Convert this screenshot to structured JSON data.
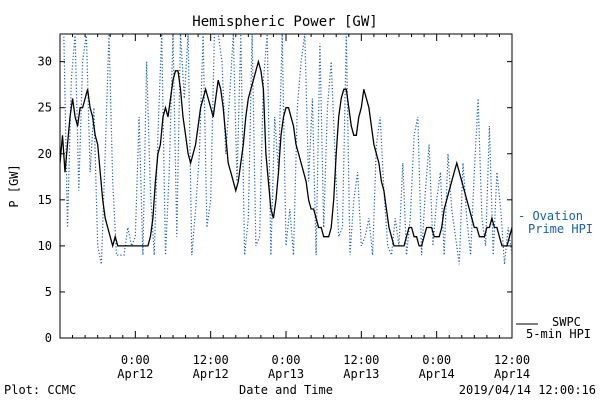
{
  "chart_data": {
    "type": "line",
    "title": "Hemispheric Power [GW]",
    "xlabel": "Date and Time",
    "ylabel": "P [GW]",
    "xlim": [
      0,
      36
    ],
    "ylim": [
      0,
      33
    ],
    "grid": false,
    "y_ticks": [
      0,
      5,
      10,
      15,
      20,
      25,
      30
    ],
    "x_ticks": [
      {
        "x": 6,
        "time": "0:00",
        "date": "Apr12"
      },
      {
        "x": 12,
        "time": "12:00",
        "date": "Apr12"
      },
      {
        "x": 18,
        "time": "0:00",
        "date": "Apr13"
      },
      {
        "x": 24,
        "time": "12:00",
        "date": "Apr13"
      },
      {
        "x": 30,
        "time": "0:00",
        "date": "Apr14"
      },
      {
        "x": 36,
        "time": "12:00",
        "date": "Apr14"
      }
    ],
    "x_unit_note": "hours, x=0 at 2019/04/11 18:00",
    "series": [
      {
        "name": "SWPC 5-min HPI",
        "legend_lines": [
          "SWPC",
          "5-min HPI"
        ],
        "color": "#000000",
        "style": "solid",
        "x": [
          0,
          0.2,
          0.4,
          0.6,
          0.8,
          1.0,
          1.2,
          1.4,
          1.6,
          1.8,
          2.0,
          2.2,
          2.4,
          2.6,
          2.8,
          3.0,
          3.2,
          3.4,
          3.6,
          3.8,
          4.0,
          4.2,
          4.4,
          4.6,
          4.8,
          5.0,
          5.2,
          5.4,
          5.6,
          5.8,
          6.0,
          6.2,
          6.4,
          6.6,
          6.8,
          7.0,
          7.2,
          7.4,
          7.6,
          7.8,
          8.0,
          8.2,
          8.4,
          8.6,
          8.8,
          9.0,
          9.2,
          9.4,
          9.6,
          9.8,
          10.0,
          10.2,
          10.4,
          10.6,
          10.8,
          11.0,
          11.2,
          11.4,
          11.6,
          11.8,
          12.0,
          12.2,
          12.4,
          12.6,
          12.8,
          13.0,
          13.2,
          13.4,
          13.6,
          13.8,
          14.0,
          14.2,
          14.4,
          14.6,
          14.8,
          15.0,
          15.2,
          15.4,
          15.6,
          15.8,
          16.0,
          16.2,
          16.4,
          16.6,
          16.8,
          17.0,
          17.2,
          17.4,
          17.6,
          17.8,
          18.0,
          18.2,
          18.4,
          18.6,
          18.8,
          19.0,
          19.2,
          19.4,
          19.6,
          19.8,
          20.0,
          20.2,
          20.4,
          20.6,
          20.8,
          21.0,
          21.2,
          21.4,
          21.6,
          21.8,
          22.0,
          22.2,
          22.4,
          22.6,
          22.8,
          23.0,
          23.2,
          23.4,
          23.6,
          23.8,
          24.0,
          24.2,
          24.4,
          24.6,
          24.8,
          25.0,
          25.2,
          25.4,
          25.6,
          25.8,
          26.0,
          26.2,
          26.4,
          26.6,
          26.8,
          27.0,
          27.2,
          27.4,
          27.6,
          27.8,
          28.0,
          28.2,
          28.4,
          28.6,
          28.8,
          29.0,
          29.2,
          29.4,
          29.6,
          29.8,
          30.0,
          30.2,
          30.4,
          30.6,
          30.8,
          31.0,
          31.2,
          31.4,
          31.6,
          31.8,
          32.0,
          32.2,
          32.4,
          32.6,
          32.8,
          33.0,
          33.2,
          33.4,
          33.6,
          33.8,
          34.0,
          34.2,
          34.4,
          34.6,
          34.8,
          35.0,
          35.2,
          35.4,
          35.6,
          35.8,
          36.0
        ],
        "values": [
          19,
          22,
          18,
          21,
          24,
          26,
          24,
          23,
          25,
          25,
          26,
          27,
          25,
          24,
          22,
          21,
          18,
          15,
          13,
          12,
          11,
          10,
          11,
          10,
          10,
          10,
          10,
          10,
          10,
          10,
          10,
          10,
          10,
          10,
          10,
          10,
          11,
          13,
          17,
          20,
          21,
          24,
          25,
          24,
          26,
          28,
          29,
          29,
          27,
          24,
          22,
          20,
          19,
          20,
          21,
          23,
          25,
          26,
          27,
          26,
          25,
          24,
          26,
          28,
          27,
          25,
          22,
          19,
          18,
          17,
          16,
          17,
          19,
          21,
          24,
          26,
          27,
          28,
          29,
          30,
          29,
          27,
          20,
          17,
          14,
          13,
          15,
          18,
          22,
          24,
          25,
          25,
          24,
          23,
          21,
          20,
          19,
          18,
          17,
          15,
          14,
          14,
          13,
          12,
          12,
          11,
          11,
          11,
          12,
          15,
          20,
          24,
          26,
          27,
          27,
          25,
          23,
          22,
          22,
          24,
          25,
          27,
          26,
          25,
          23,
          21,
          20,
          19,
          17,
          16,
          14,
          12,
          11,
          10,
          10,
          10,
          10,
          10,
          11,
          12,
          12,
          11,
          11,
          10,
          10,
          11,
          12,
          12,
          12,
          11,
          11,
          11,
          12,
          14,
          15,
          16,
          17,
          18,
          19,
          18,
          17,
          16,
          15,
          14,
          13,
          12,
          12,
          11,
          11,
          11,
          12,
          12,
          13,
          12,
          12,
          11,
          10,
          10,
          10,
          11,
          12
        ]
      },
      {
        "name": "Ovation Prime HPI",
        "legend_lines": [
          "- Ovation",
          "Prime HPI"
        ],
        "color": "#1a5fb4",
        "style": "dotted",
        "x": [
          0,
          0.3,
          0.6,
          0.9,
          1.2,
          1.5,
          1.8,
          2.1,
          2.4,
          2.7,
          3.0,
          3.3,
          3.6,
          3.9,
          4.2,
          4.5,
          4.8,
          5.1,
          5.4,
          5.7,
          6.0,
          6.3,
          6.6,
          6.9,
          7.2,
          7.5,
          7.8,
          8.1,
          8.4,
          8.7,
          9.0,
          9.3,
          9.6,
          9.9,
          10.2,
          10.5,
          10.8,
          11.1,
          11.4,
          11.7,
          12.0,
          12.3,
          12.6,
          12.9,
          13.2,
          13.5,
          13.8,
          14.1,
          14.4,
          14.7,
          15.0,
          15.3,
          15.6,
          15.9,
          16.2,
          16.5,
          16.8,
          17.1,
          17.4,
          17.7,
          18.0,
          18.3,
          18.6,
          18.9,
          19.2,
          19.5,
          19.8,
          20.1,
          20.4,
          20.7,
          21.0,
          21.3,
          21.6,
          21.9,
          22.2,
          22.5,
          22.8,
          23.1,
          23.4,
          23.7,
          24.0,
          24.3,
          24.6,
          24.9,
          25.2,
          25.5,
          25.8,
          26.1,
          26.4,
          26.7,
          27.0,
          27.3,
          27.6,
          27.9,
          28.2,
          28.5,
          28.8,
          29.1,
          29.4,
          29.7,
          30.0,
          30.3,
          30.6,
          30.9,
          31.2,
          31.5,
          31.8,
          32.1,
          32.4,
          32.7,
          33.0,
          33.3,
          33.6,
          33.9,
          34.2,
          34.5,
          34.8,
          35.1,
          35.4,
          35.7,
          36.0
        ],
        "values": [
          33,
          33,
          12,
          28,
          33,
          16,
          30,
          33,
          18,
          25,
          10,
          8,
          20,
          33,
          17,
          9,
          9,
          9,
          12,
          10,
          11,
          24,
          9,
          30,
          16,
          9,
          22,
          33,
          9,
          18,
          33,
          11,
          33,
          26,
          33,
          9,
          14,
          20,
          33,
          12,
          15,
          33,
          33,
          30,
          20,
          26,
          33,
          17,
          33,
          9,
          13,
          33,
          10,
          11,
          28,
          33,
          9,
          24,
          18,
          33,
          10,
          14,
          9,
          25,
          30,
          33,
          17,
          26,
          9,
          32,
          12,
          25,
          30,
          20,
          11,
          12,
          33,
          9,
          15,
          18,
          10,
          11,
          13,
          9,
          21,
          24,
          16,
          10,
          9,
          13,
          10,
          19,
          9,
          13,
          22,
          24,
          9,
          16,
          21,
          10,
          15,
          18,
          9,
          20,
          14,
          11,
          8,
          19,
          13,
          9,
          18,
          26,
          13,
          10,
          23,
          9,
          18,
          14,
          8,
          12,
          9
        ]
      }
    ]
  },
  "footer": {
    "left": "Plot: CCMC",
    "right": "2019/04/14 12:00:16"
  }
}
